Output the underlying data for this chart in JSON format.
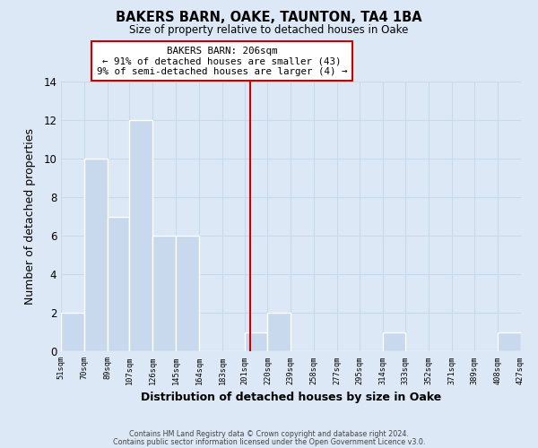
{
  "title": "BAKERS BARN, OAKE, TAUNTON, TA4 1BA",
  "subtitle": "Size of property relative to detached houses in Oake",
  "xlabel": "Distribution of detached houses by size in Oake",
  "ylabel": "Number of detached properties",
  "bar_edges": [
    51,
    70,
    89,
    107,
    126,
    145,
    164,
    183,
    201,
    220,
    239,
    258,
    277,
    295,
    314,
    333,
    352,
    371,
    389,
    408,
    427
  ],
  "bar_heights": [
    2,
    10,
    7,
    12,
    6,
    6,
    0,
    0,
    1,
    2,
    0,
    0,
    0,
    0,
    1,
    0,
    0,
    0,
    0,
    1
  ],
  "tick_labels": [
    "51sqm",
    "70sqm",
    "89sqm",
    "107sqm",
    "126sqm",
    "145sqm",
    "164sqm",
    "183sqm",
    "201sqm",
    "220sqm",
    "239sqm",
    "258sqm",
    "277sqm",
    "295sqm",
    "314sqm",
    "333sqm",
    "352sqm",
    "371sqm",
    "389sqm",
    "408sqm",
    "427sqm"
  ],
  "bar_color": "#c8d8ed",
  "bar_edge_color": "#ffffff",
  "grid_color": "#c8d8ed",
  "bg_color": "#dce8f5",
  "plot_bg_color": "#dce8f5",
  "reference_line_x": 206,
  "reference_line_color": "#cc0000",
  "annotation_line1": "BAKERS BARN: 206sqm",
  "annotation_line2": "← 91% of detached houses are smaller (43)",
  "annotation_line3": "9% of semi-detached houses are larger (4) →",
  "annotation_box_color": "#ffffff",
  "annotation_box_edge_color": "#cc0000",
  "ylim": [
    0,
    14
  ],
  "yticks": [
    0,
    2,
    4,
    6,
    8,
    10,
    12,
    14
  ],
  "footer_line1": "Contains HM Land Registry data © Crown copyright and database right 2024.",
  "footer_line2": "Contains public sector information licensed under the Open Government Licence v3.0."
}
